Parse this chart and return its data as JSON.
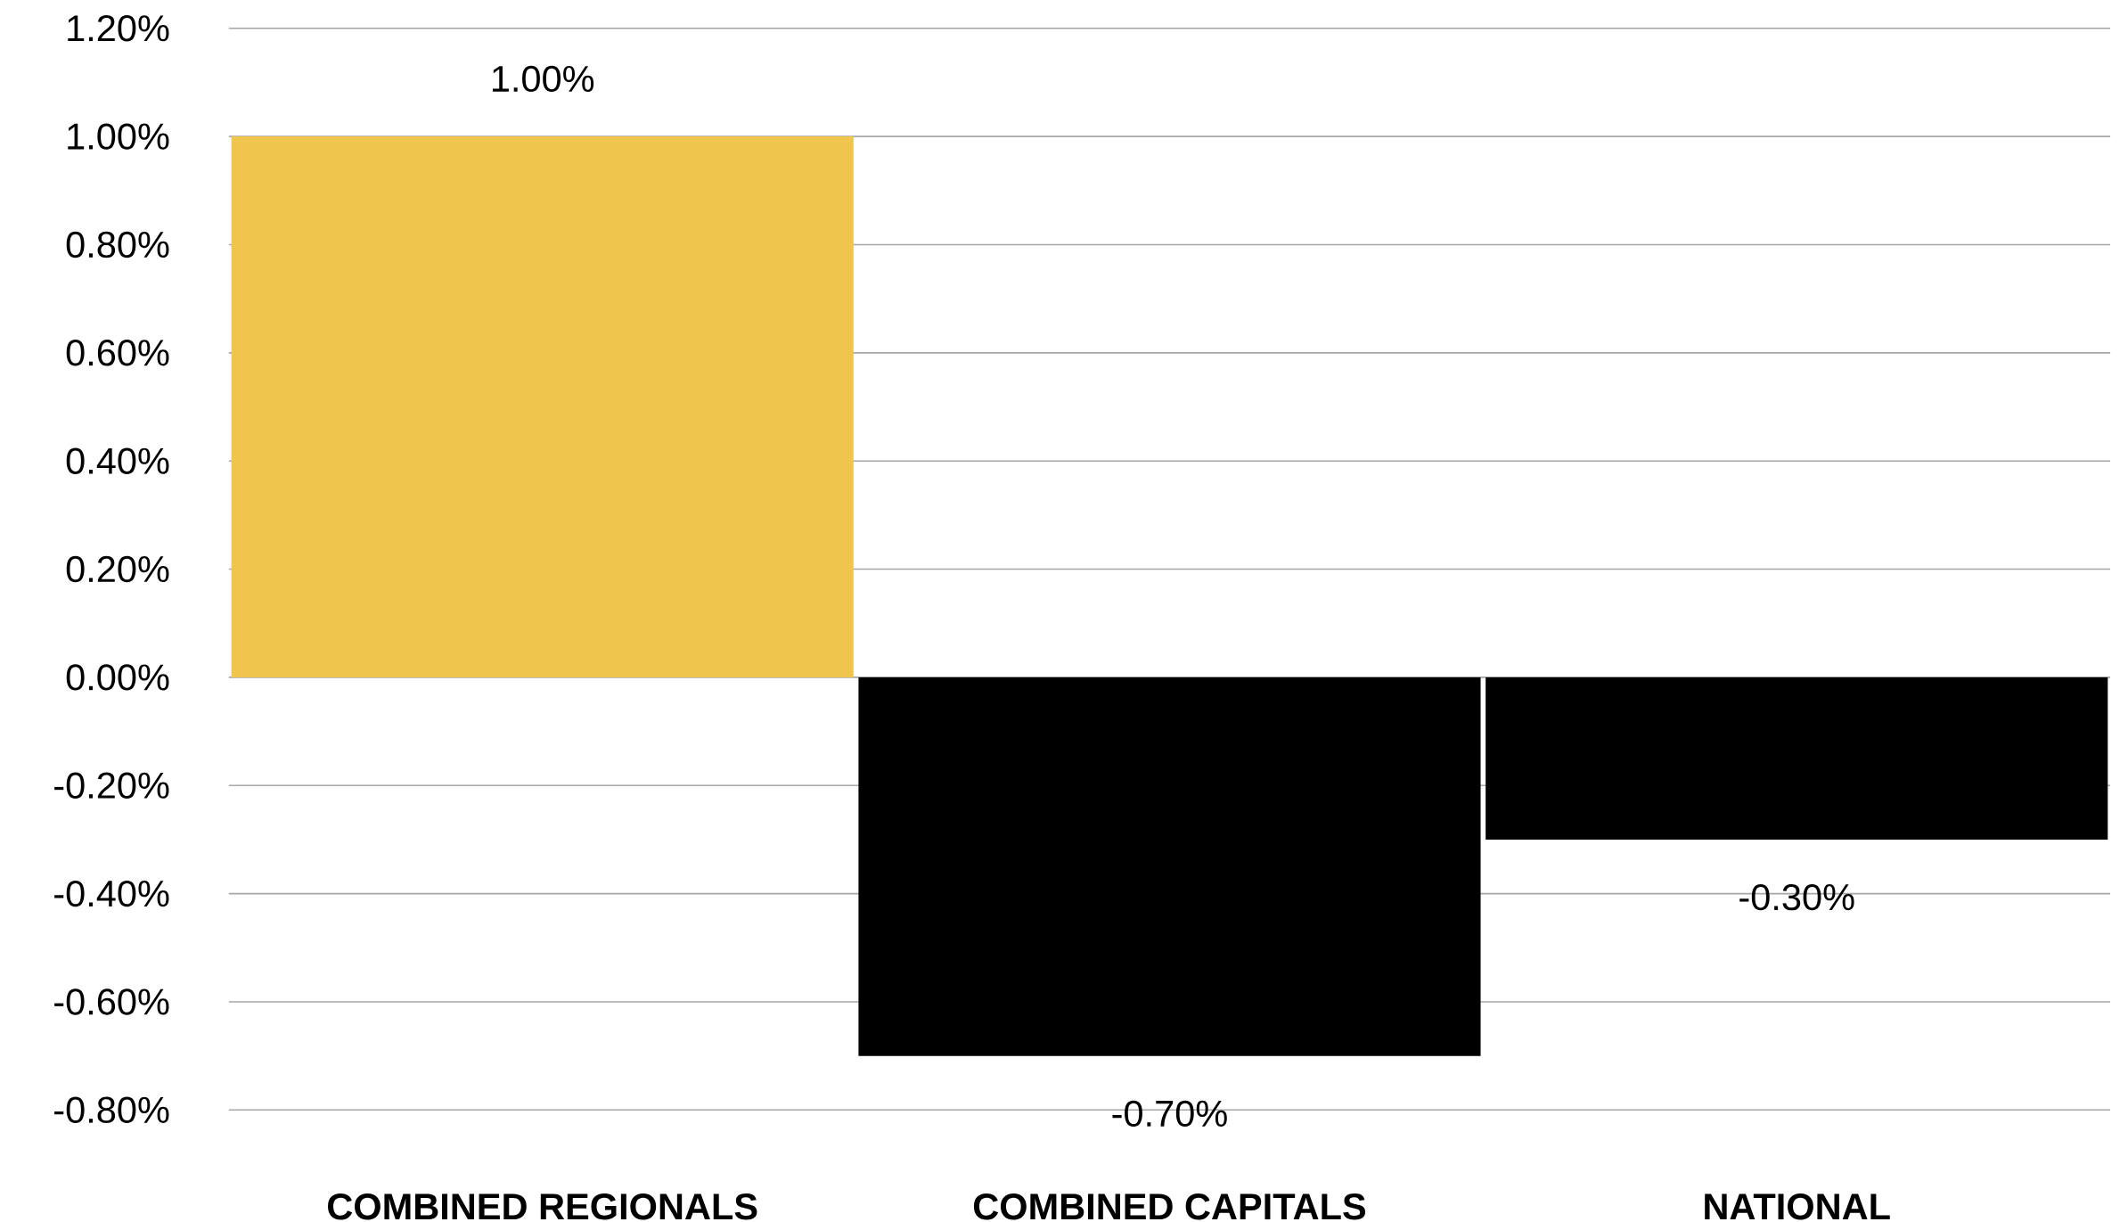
{
  "chart_data": {
    "type": "bar",
    "categories": [
      "COMBINED REGIONALS",
      "COMBINED CAPITALS",
      "NATIONAL"
    ],
    "values": [
      1.0,
      -0.7,
      -0.3
    ],
    "colors": [
      "#f0c54e",
      "#000000",
      "#000000"
    ],
    "value_labels": [
      "1.00%",
      "-0.70%",
      "-0.30%"
    ],
    "ylim": [
      -0.8,
      1.2
    ],
    "yticks": [
      {
        "value": -0.8,
        "label": "-0.80%"
      },
      {
        "value": -0.6,
        "label": "-0.60%"
      },
      {
        "value": -0.4,
        "label": "-0.40%"
      },
      {
        "value": -0.2,
        "label": "-0.20%"
      },
      {
        "value": 0,
        "label": "0.00%"
      },
      {
        "value": 0.2,
        "label": "0.20%"
      },
      {
        "value": 0.4,
        "label": "0.40%"
      },
      {
        "value": 0.6,
        "label": "0.60%"
      },
      {
        "value": 0.8,
        "label": "0.80%"
      },
      {
        "value": 1.0,
        "label": "1.00%"
      },
      {
        "value": 1.2,
        "label": "1.20%"
      }
    ],
    "grid": "y"
  }
}
